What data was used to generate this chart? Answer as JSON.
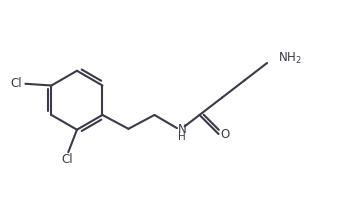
{
  "bg_color": "#ffffff",
  "line_color": "#3a3a4a",
  "text_color": "#3a3a4a",
  "bond_lw": 1.5,
  "figsize": [
    3.48,
    1.97
  ],
  "dpi": 100,
  "xlim": [
    0,
    10
  ],
  "ylim": [
    0,
    5.6
  ]
}
